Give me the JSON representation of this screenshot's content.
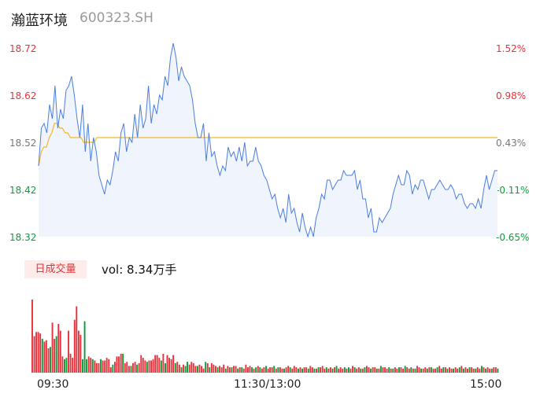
{
  "header": {
    "name": "瀚蓝环境",
    "code": "600323.SH"
  },
  "price_axis": [
    "18.72",
    "18.62",
    "18.52",
    "18.42",
    "18.32"
  ],
  "pct_axis": [
    "1.52%",
    "0.98%",
    "0.43%",
    "-0.11%",
    "-0.65%"
  ],
  "volume": {
    "badge": "日成交量",
    "label": "vol: 8.34万手"
  },
  "time_axis": [
    "09:30",
    "11:30/13:00",
    "15:00"
  ],
  "colors": {
    "price_line": "#4a7ee0",
    "avg_line": "#f5b825",
    "up": "#e8323c",
    "down": "#0c9d3a",
    "area": "#f0f4fc"
  },
  "chart_data": {
    "type": "line",
    "price_range": [
      18.32,
      18.72
    ],
    "pct_range": [
      -0.65,
      1.52
    ],
    "series": [
      {
        "values": [
          18.47,
          18.55,
          18.56,
          18.54,
          18.6,
          18.57,
          18.64,
          18.55,
          18.59,
          18.57,
          18.63,
          18.64,
          18.66,
          18.62,
          18.57,
          18.53,
          18.6,
          18.5,
          18.56,
          18.48,
          18.53,
          18.5,
          18.45,
          18.43,
          18.41,
          18.44,
          18.43,
          18.46,
          18.5,
          18.48,
          18.54,
          18.56,
          18.5,
          18.53,
          18.52,
          18.58,
          18.53,
          18.6,
          18.55,
          18.57,
          18.64,
          18.56,
          18.6,
          18.58,
          18.62,
          18.61,
          18.66,
          18.64,
          18.7,
          18.73,
          18.7,
          18.65,
          18.68,
          18.66,
          18.65,
          18.64,
          18.61,
          18.56,
          18.53,
          18.53,
          18.56,
          18.48,
          18.54,
          18.49,
          18.5,
          18.47,
          18.45,
          18.47,
          18.46,
          18.51,
          18.49,
          18.5,
          18.48,
          18.51,
          18.48,
          18.52,
          18.47,
          18.48,
          18.48,
          18.51,
          18.48,
          18.47,
          18.45,
          18.44,
          18.42,
          18.4,
          18.41,
          18.38,
          18.36,
          18.38,
          18.35,
          18.41,
          18.37,
          18.38,
          18.35,
          18.33,
          18.37,
          18.34,
          18.32,
          18.34,
          18.32,
          18.36,
          18.38,
          18.41,
          18.4,
          18.44,
          18.44,
          18.42,
          18.43,
          18.44,
          18.44,
          18.46,
          18.45,
          18.45,
          18.45,
          18.46,
          18.42,
          18.44,
          18.4,
          18.4,
          18.36,
          18.38,
          18.33,
          18.33,
          18.36,
          18.35,
          18.36,
          18.37,
          18.38,
          18.41,
          18.43,
          18.45,
          18.43,
          18.43,
          18.46,
          18.45,
          18.41,
          18.43,
          18.42,
          18.44,
          18.44,
          18.42,
          18.4,
          18.42,
          18.42,
          18.43,
          18.44,
          18.43,
          18.42,
          18.42,
          18.43,
          18.42,
          18.4,
          18.41,
          18.41,
          18.39,
          18.38,
          18.39,
          18.39,
          18.38,
          18.4,
          18.38,
          18.42,
          18.45,
          18.42,
          18.44,
          18.46,
          18.46
        ]
      },
      {
        "values": [
          18.47,
          18.5,
          18.51,
          18.51,
          18.53,
          18.54,
          18.56,
          18.56,
          18.55,
          18.55,
          18.54,
          18.54,
          18.53,
          18.53,
          18.53,
          18.53,
          18.53,
          18.52,
          18.52,
          18.52,
          18.52,
          18.52,
          18.53,
          18.53,
          18.53,
          18.53,
          18.53,
          18.53,
          18.53,
          18.53,
          18.53,
          18.53,
          18.53,
          18.53,
          18.53,
          18.53,
          18.53,
          18.53,
          18.53,
          18.53,
          18.53,
          18.53,
          18.53,
          18.53,
          18.53,
          18.53,
          18.53,
          18.53,
          18.53,
          18.53,
          18.53,
          18.53,
          18.53,
          18.53,
          18.53,
          18.53,
          18.53,
          18.53,
          18.53,
          18.53,
          18.53,
          18.53,
          18.53,
          18.53,
          18.53,
          18.53,
          18.53,
          18.53,
          18.53,
          18.53,
          18.53,
          18.53,
          18.53,
          18.53,
          18.53,
          18.53,
          18.53,
          18.53,
          18.53,
          18.53,
          18.53,
          18.53,
          18.53,
          18.53,
          18.53,
          18.53,
          18.53,
          18.53,
          18.53,
          18.53,
          18.53,
          18.53,
          18.53,
          18.53,
          18.53,
          18.53,
          18.53,
          18.53,
          18.53,
          18.53,
          18.53,
          18.53,
          18.53,
          18.53,
          18.53,
          18.53,
          18.53,
          18.53,
          18.53,
          18.53,
          18.53,
          18.53,
          18.53,
          18.53,
          18.53,
          18.53,
          18.53,
          18.53,
          18.53,
          18.53,
          18.53,
          18.53,
          18.53,
          18.53,
          18.53,
          18.53,
          18.53,
          18.53,
          18.53,
          18.53,
          18.53,
          18.53,
          18.53,
          18.53,
          18.53,
          18.53,
          18.53,
          18.53,
          18.53,
          18.53,
          18.53,
          18.53,
          18.53,
          18.53,
          18.53,
          18.53,
          18.53,
          18.53,
          18.53,
          18.53,
          18.53,
          18.53,
          18.53,
          18.53,
          18.53,
          18.53,
          18.53,
          18.53,
          18.53,
          18.53,
          18.53,
          18.53,
          18.53,
          18.53,
          18.53,
          18.53,
          18.53,
          18.53,
          18.53,
          18.53,
          18.53,
          18.53,
          18.53,
          18.53
        ]
      }
    ],
    "volume_bars": [
      54,
      27,
      30,
      30,
      29,
      25,
      23,
      24,
      18,
      19,
      37,
      25,
      27,
      36,
      31,
      12,
      10,
      11,
      31,
      14,
      11,
      39,
      49,
      31,
      28,
      10,
      38,
      10,
      12,
      11,
      10,
      9,
      7,
      7,
      10,
      9,
      9,
      11,
      10,
      4,
      6,
      8,
      12,
      12,
      14,
      14,
      7,
      8,
      5,
      5,
      7,
      8,
      6,
      7,
      13,
      11,
      9,
      8,
      9,
      9,
      10,
      13,
      13,
      11,
      9,
      14,
      7,
      13,
      11,
      10,
      13,
      7,
      8,
      6,
      4,
      6,
      5,
      8,
      6,
      8,
      7,
      5,
      5,
      6,
      5,
      3,
      8,
      7,
      4,
      7,
      6,
      5,
      4,
      5,
      4,
      6,
      3,
      5,
      4,
      4,
      5,
      5,
      3,
      4,
      4,
      3,
      6,
      4,
      5,
      4,
      3,
      4,
      5,
      4,
      3,
      4,
      5,
      3,
      4,
      4,
      5,
      3,
      4,
      4,
      3,
      3,
      4,
      5,
      4,
      3,
      5,
      4,
      3,
      4,
      3,
      4,
      4,
      3,
      5,
      4,
      3,
      3,
      4,
      4,
      5,
      3,
      4,
      3,
      4,
      3,
      4,
      5,
      3,
      4,
      3,
      4,
      3,
      4,
      3,
      5,
      4,
      3,
      4,
      3,
      3,
      4,
      5,
      4,
      3,
      4,
      4,
      3,
      3,
      5,
      4,
      4,
      3,
      4,
      3,
      3,
      4,
      3,
      4,
      4,
      3,
      5,
      4,
      3,
      4,
      3,
      3,
      5,
      4,
      3,
      3,
      4,
      3,
      4,
      4,
      3,
      3,
      4,
      5,
      3,
      4,
      4,
      3,
      4,
      3,
      3,
      4,
      3,
      4,
      5,
      3,
      4,
      3,
      4,
      4,
      3,
      3,
      4,
      3,
      5,
      4,
      3,
      4,
      3,
      3,
      4,
      4,
      3
    ],
    "volume_up": [
      1,
      1,
      1,
      1,
      1,
      0,
      1,
      1,
      1,
      0,
      1,
      1,
      0,
      1,
      1,
      1,
      0,
      0,
      1,
      1,
      1,
      1,
      1,
      1,
      1,
      0,
      0,
      0,
      1,
      1,
      0,
      1,
      1,
      1,
      0,
      1,
      1,
      1,
      1,
      1,
      0,
      1,
      1,
      1,
      1,
      0,
      1,
      1,
      1,
      0,
      1,
      1,
      0,
      1,
      1,
      1,
      1,
      0,
      1,
      1,
      1,
      1,
      1,
      1,
      0,
      1,
      0,
      1,
      1,
      1,
      1,
      0,
      1,
      1,
      0,
      1,
      0,
      0,
      1,
      1,
      1,
      1,
      0,
      1,
      1,
      1,
      0,
      1,
      0,
      1,
      1,
      1,
      0,
      1,
      1,
      1,
      0,
      1,
      1,
      0,
      1,
      1,
      0,
      1,
      0,
      1,
      1,
      1,
      1,
      0,
      1,
      0,
      1,
      0,
      1,
      1,
      0,
      1,
      1,
      1,
      0,
      1,
      0,
      1,
      1,
      0,
      1,
      1,
      0,
      1,
      1,
      1,
      0,
      1,
      0,
      1,
      1,
      0,
      1,
      1,
      0,
      1,
      0,
      1,
      1,
      1,
      0,
      1,
      1,
      0,
      1,
      0,
      1,
      1,
      1,
      0,
      1,
      0,
      1,
      1,
      0,
      1,
      1,
      0,
      1,
      0,
      1,
      1,
      0,
      1,
      1,
      0,
      1,
      0,
      1,
      1,
      1,
      0,
      1,
      0,
      1,
      1,
      0,
      1,
      1,
      0,
      1,
      1,
      0,
      1,
      0,
      1,
      1,
      0,
      1,
      1,
      0,
      1,
      0,
      1,
      1,
      0,
      1,
      1,
      0,
      1,
      0,
      1,
      1,
      0,
      1,
      1,
      0,
      1,
      0,
      1,
      1,
      0,
      1,
      1,
      0,
      1,
      1,
      0,
      1,
      0,
      1,
      1,
      0,
      1,
      1,
      0,
      1,
      1
    ]
  }
}
